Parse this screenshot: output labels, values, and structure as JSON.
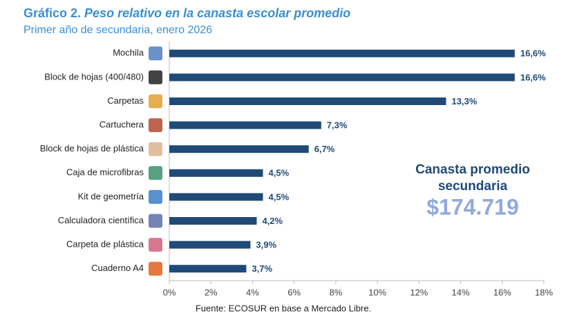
{
  "chart_data": {
    "type": "hbar",
    "title_label": "Gráfico 2.",
    "title": "Peso relativo en la canasta escolar promedio",
    "subtitle": "Primer año de secundaria, enero 2026",
    "categories": [
      "Mochila",
      "Block de hojas (400/480)",
      "Carpetas",
      "Cartuchera",
      "Block de hojas de plástica",
      "Caja de microfibras",
      "Kit de geometría",
      "Calculadora científica",
      "Carpeta de plástica",
      "Cuaderno A4"
    ],
    "values": [
      16.6,
      16.6,
      13.3,
      7.3,
      6.7,
      4.5,
      4.5,
      4.2,
      3.9,
      3.7
    ],
    "value_labels": [
      "16,6%",
      "16,6%",
      "13,3%",
      "7,3%",
      "6,7%",
      "4,5%",
      "4,5%",
      "4,2%",
      "3,9%",
      "3,7%"
    ],
    "color": "#1f4a78",
    "xlim": [
      0,
      18
    ],
    "xticks": [
      {
        "value": 0,
        "label": "0%"
      },
      {
        "value": 2,
        "label": "2%"
      },
      {
        "value": 4,
        "label": "4%"
      },
      {
        "value": 6,
        "label": "6%"
      },
      {
        "value": 8,
        "label": "8%"
      },
      {
        "value": 10,
        "label": "10%"
      },
      {
        "value": 12,
        "label": "12%"
      },
      {
        "value": 14,
        "label": "14%"
      },
      {
        "value": 16,
        "label": "16%"
      },
      {
        "value": 18,
        "label": "18%"
      }
    ],
    "grid": false,
    "annotation": {
      "lines": [
        "Canasta promedio",
        "secundaria"
      ],
      "amount": "$174.719"
    },
    "source": "Fuente: ECOSUR en base a Mercado Libre."
  }
}
